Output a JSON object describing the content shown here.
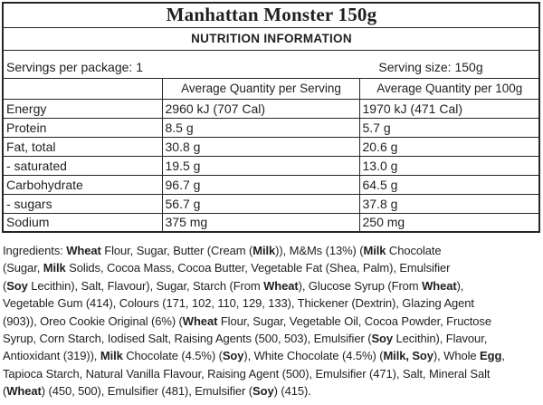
{
  "page": {
    "background": "#ffffff",
    "text_color": "#1f1f1f",
    "border_color": "#262626"
  },
  "label": {
    "title": "Manhattan Monster 150g",
    "section_header": "NUTRITION INFORMATION",
    "servings_per_package": "Servings per package: 1",
    "serving_size": "Serving size: 150g",
    "column_headers": {
      "per_serving": "Average Quantity per Serving",
      "per_100g": "Average Quantity per 100g"
    },
    "rows": [
      {
        "nutrient": "Energy",
        "per_serving": "2960 kJ (707 Cal)",
        "per_100g": "1970 kJ (471 Cal)"
      },
      {
        "nutrient": "Protein",
        "per_serving": "8.5 g",
        "per_100g": "5.7 g"
      },
      {
        "nutrient": "Fat, total",
        "per_serving": "30.8 g",
        "per_100g": "20.6 g"
      },
      {
        "nutrient": "- saturated",
        "per_serving": "19.5 g",
        "per_100g": "13.0 g"
      },
      {
        "nutrient": "Carbohydrate",
        "per_serving": "96.7 g",
        "per_100g": "64.5 g"
      },
      {
        "nutrient": "- sugars",
        "per_serving": "56.7 g",
        "per_100g": "37.8 g"
      },
      {
        "nutrient": "Sodium",
        "per_serving": "375 mg",
        "per_100g": "250 mg"
      }
    ]
  },
  "ingredients": {
    "lines": [
      [
        {
          "t": "Ingredients: "
        },
        {
          "t": "Wheat",
          "b": true
        },
        {
          "t": " Flour, Sugar, Butter (Cream ("
        },
        {
          "t": "Milk",
          "b": true
        },
        {
          "t": ")), M&Ms (13%) ("
        },
        {
          "t": "Milk",
          "b": true
        },
        {
          "t": " Chocolate"
        }
      ],
      [
        {
          "t": "(Sugar, "
        },
        {
          "t": "Milk",
          "b": true
        },
        {
          "t": " Solids, Cocoa Mass, Cocoa Butter, Vegetable Fat (Shea, Palm), Emulsifier"
        }
      ],
      [
        {
          "t": "("
        },
        {
          "t": "Soy",
          "b": true
        },
        {
          "t": " Lecithin), Salt, Flavour), Sugar, Starch (From "
        },
        {
          "t": "Wheat",
          "b": true
        },
        {
          "t": "), Glucose Syrup (From "
        },
        {
          "t": "Wheat",
          "b": true
        },
        {
          "t": "),"
        }
      ],
      [
        {
          "t": "Vegetable Gum (414), Colours (171, 102, 110, 129, 133), Thickener (Dextrin), Glazing Agent"
        }
      ],
      [
        {
          "t": "(903)), Oreo Cookie Original (6%) ("
        },
        {
          "t": "Wheat",
          "b": true
        },
        {
          "t": " Flour, Sugar, Vegetable Oil, Cocoa Powder, Fructose"
        }
      ],
      [
        {
          "t": "Syrup, Corn Starch, Iodised Salt, Raising Agents (500, 503), Emulsifier ("
        },
        {
          "t": "Soy",
          "b": true
        },
        {
          "t": " Lecithin), Flavour,"
        }
      ],
      [
        {
          "t": "Antioxidant (319)), "
        },
        {
          "t": "Milk",
          "b": true
        },
        {
          "t": " Chocolate (4.5%) ("
        },
        {
          "t": "Soy",
          "b": true
        },
        {
          "t": "), White Chocolate (4.5%) ("
        },
        {
          "t": "Milk, Soy",
          "b": true
        },
        {
          "t": "), Whole "
        },
        {
          "t": "Egg",
          "b": true
        },
        {
          "t": ","
        }
      ],
      [
        {
          "t": "Tapioca Starch, Natural Vanilla Flavour, Raising Agent (500), Emulsifier (471), Salt, Mineral Salt"
        }
      ],
      [
        {
          "t": "("
        },
        {
          "t": "Wheat",
          "b": true
        },
        {
          "t": ") (450, 500), Emulsifier (481), Emulsifier ("
        },
        {
          "t": "Soy",
          "b": true
        },
        {
          "t": ") (415)."
        }
      ]
    ]
  }
}
